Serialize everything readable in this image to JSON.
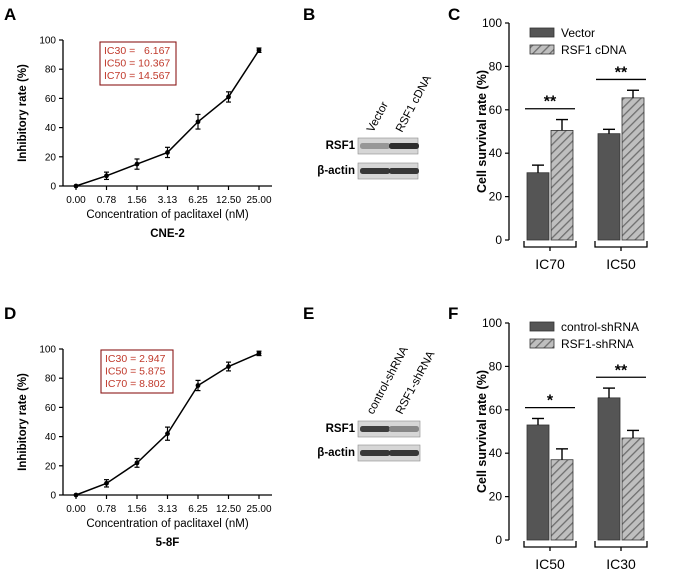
{
  "figure": {
    "colors": {
      "axis": "#000000",
      "ic_text": "#c0392b",
      "ic_border": "#8b1a1a",
      "bar_dark": "#555555",
      "bar_hatch_bg": "#bfbfbf",
      "bar_hatch_line": "#6e6e6e",
      "band_dark": "#2a2a2a",
      "band_light": "#6f6f6f",
      "blot_bg": "#d6d6d6"
    }
  },
  "chart_data": [
    {
      "panel": "A",
      "type": "line",
      "title": "CNE-2",
      "xlabel": "Concentration of paclitaxel (nM)",
      "ylabel": "Inhibitory rate (%)",
      "categories": [
        "0.00",
        "0.78",
        "1.56",
        "3.13",
        "6.25",
        "12.50",
        "25.00"
      ],
      "values": [
        0,
        7,
        15,
        23,
        44,
        61,
        93
      ],
      "errors": [
        0.5,
        2.5,
        3.5,
        3.5,
        5,
        3.5,
        1.5
      ],
      "ylim": [
        0,
        100
      ],
      "yticks": [
        "0",
        "20",
        "40",
        "60",
        "80",
        "100"
      ],
      "ic_box": [
        "IC30 =   6.167",
        "IC50 = 10.367",
        "IC70 = 14.567"
      ]
    },
    {
      "panel": "C",
      "type": "bar",
      "ylabel": "Cell survival rate (%)",
      "categories": [
        "IC70",
        "IC50"
      ],
      "series": [
        {
          "name": "Vector",
          "values": [
            31,
            49
          ],
          "errors": [
            3.5,
            2
          ]
        },
        {
          "name": "RSF1 cDNA",
          "values": [
            50.5,
            65.5
          ],
          "errors": [
            5,
            3.5
          ]
        }
      ],
      "significance": [
        "**",
        "**"
      ],
      "ylim": [
        0,
        100
      ],
      "yticks": [
        "0",
        "20",
        "40",
        "60",
        "80",
        "100"
      ]
    },
    {
      "panel": "D",
      "type": "line",
      "title": "5-8F",
      "xlabel": "Concentration of paclitaxel (nM)",
      "ylabel": "Inhibitory rate (%)",
      "categories": [
        "0.00",
        "0.78",
        "1.56",
        "3.13",
        "6.25",
        "12.50",
        "25.00"
      ],
      "values": [
        0,
        8,
        22,
        42,
        75,
        88,
        97
      ],
      "errors": [
        0.5,
        2.5,
        3,
        4.5,
        3.5,
        3,
        1.5
      ],
      "ylim": [
        0,
        100
      ],
      "yticks": [
        "0",
        "20",
        "40",
        "60",
        "80",
        "100"
      ],
      "ic_box": [
        "IC30 = 2.947",
        "IC50 = 5.875",
        "IC70 = 8.802"
      ]
    },
    {
      "panel": "F",
      "type": "bar",
      "ylabel": "Cell survival rate (%)",
      "categories": [
        "IC50",
        "IC30"
      ],
      "series": [
        {
          "name": "control-shRNA",
          "values": [
            53,
            65.5
          ],
          "errors": [
            3,
            4.5
          ]
        },
        {
          "name": "RSF1-shRNA",
          "values": [
            37,
            47
          ],
          "errors": [
            5,
            3.5
          ]
        }
      ],
      "significance": [
        "*",
        "**"
      ],
      "ylim": [
        0,
        100
      ],
      "yticks": [
        "0",
        "20",
        "40",
        "60",
        "80",
        "100"
      ]
    }
  ],
  "blots": [
    {
      "panel": "B",
      "lanes": [
        "Vector",
        "RSF1 cDNA"
      ],
      "rows": [
        {
          "label": "RSF1",
          "intensity": [
            0.25,
            0.9
          ]
        },
        {
          "label": "β-actin",
          "intensity": [
            0.85,
            0.85
          ]
        }
      ]
    },
    {
      "panel": "E",
      "lanes": [
        "control-shRNA",
        "RSF1-shRNA"
      ],
      "rows": [
        {
          "label": "RSF1",
          "intensity": [
            0.8,
            0.35
          ]
        },
        {
          "label": "β-actin",
          "intensity": [
            0.85,
            0.85
          ]
        }
      ]
    }
  ]
}
